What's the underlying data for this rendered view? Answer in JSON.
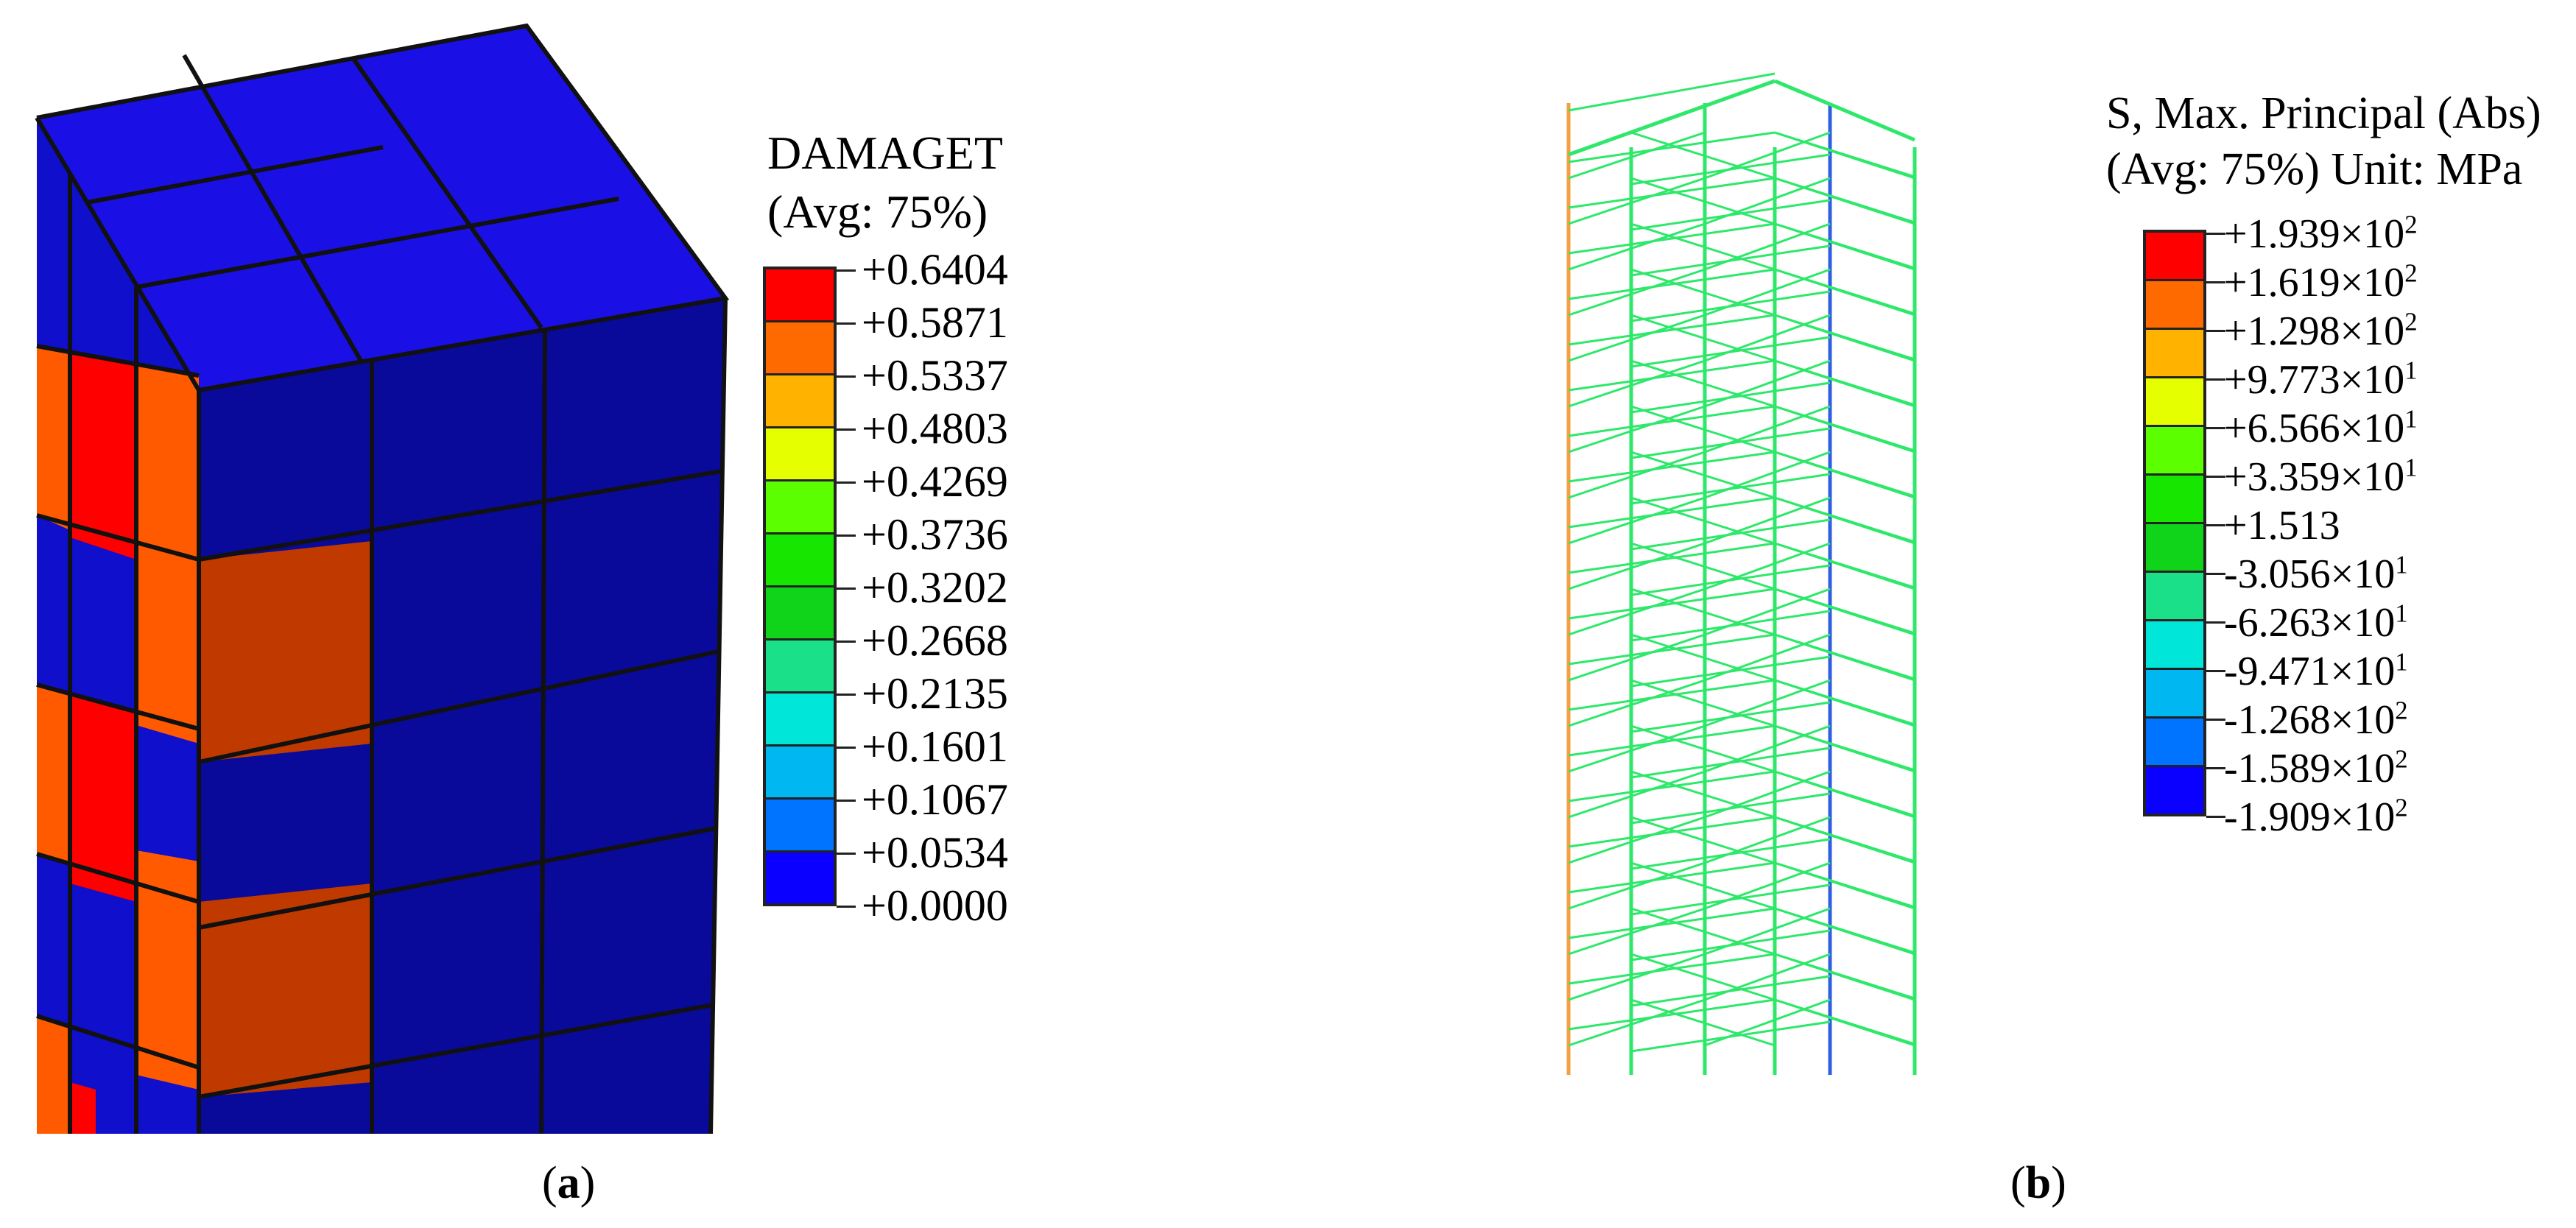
{
  "panel_a": {
    "legend": {
      "title_line1": "DAMAGET",
      "title_line2": "(Avg: 75%)",
      "colors": [
        "#ff0000",
        "#ff6a00",
        "#ffb300",
        "#e6ff00",
        "#5cff00",
        "#17e600",
        "#10d41a",
        "#19e089",
        "#00e6d8",
        "#00b7f2",
        "#0073ff",
        "#0a00ff"
      ],
      "labels": [
        "+0.6404",
        "+0.5871",
        "+0.5337",
        "+0.4803",
        "+0.4269",
        "+0.3736",
        "+0.3202",
        "+0.2668",
        "+0.2135",
        "+0.1601",
        "+0.1067",
        "+0.0534",
        "+0.0000"
      ]
    },
    "caption_open": "(",
    "caption_letter": "a",
    "caption_close": ")"
  },
  "panel_b": {
    "legend": {
      "title_line1": "S, Max. Principal (Abs)",
      "title_line2": "(Avg: 75%)  Unit: MPa",
      "colors": [
        "#ff0000",
        "#ff6a00",
        "#ffb300",
        "#e6ff00",
        "#5cff00",
        "#17e600",
        "#10d41a",
        "#19e089",
        "#00e6d8",
        "#00b7f2",
        "#0073ff",
        "#0a00ff"
      ],
      "labels": [
        {
          "mantissa": "+1.939",
          "times": "×10",
          "exp": "2"
        },
        {
          "mantissa": "+1.619",
          "times": "×10",
          "exp": "2"
        },
        {
          "mantissa": "+1.298",
          "times": "×10",
          "exp": "2"
        },
        {
          "mantissa": "+9.773",
          "times": "×10",
          "exp": "1"
        },
        {
          "mantissa": "+6.566",
          "times": "×10",
          "exp": "1"
        },
        {
          "mantissa": "+3.359",
          "times": "×10",
          "exp": "1"
        },
        {
          "mantissa": "+1.513",
          "times": "",
          "exp": ""
        },
        {
          "mantissa": "-3.056",
          "times": "×10",
          "exp": "1"
        },
        {
          "mantissa": "-6.263",
          "times": "×10",
          "exp": "1"
        },
        {
          "mantissa": "-9.471",
          "times": "×10",
          "exp": "1"
        },
        {
          "mantissa": "-1.268",
          "times": "×10",
          "exp": "2"
        },
        {
          "mantissa": "-1.589",
          "times": "×10",
          "exp": "2"
        },
        {
          "mantissa": "-1.909",
          "times": "×10",
          "exp": "2"
        }
      ]
    },
    "caption_open": "(",
    "caption_letter": "b",
    "caption_close": ")"
  },
  "colors": {
    "cube_top": "#1a10e6",
    "cube_front": "#0a0a9a",
    "cube_side": "#0f0fcc",
    "damage_red": "#ff0000",
    "damage_orange": "#ff5a00",
    "damage_dark_orange": "#c03a00",
    "mesh_line": "#111111",
    "scaffold_green": "#2ee86a"
  }
}
